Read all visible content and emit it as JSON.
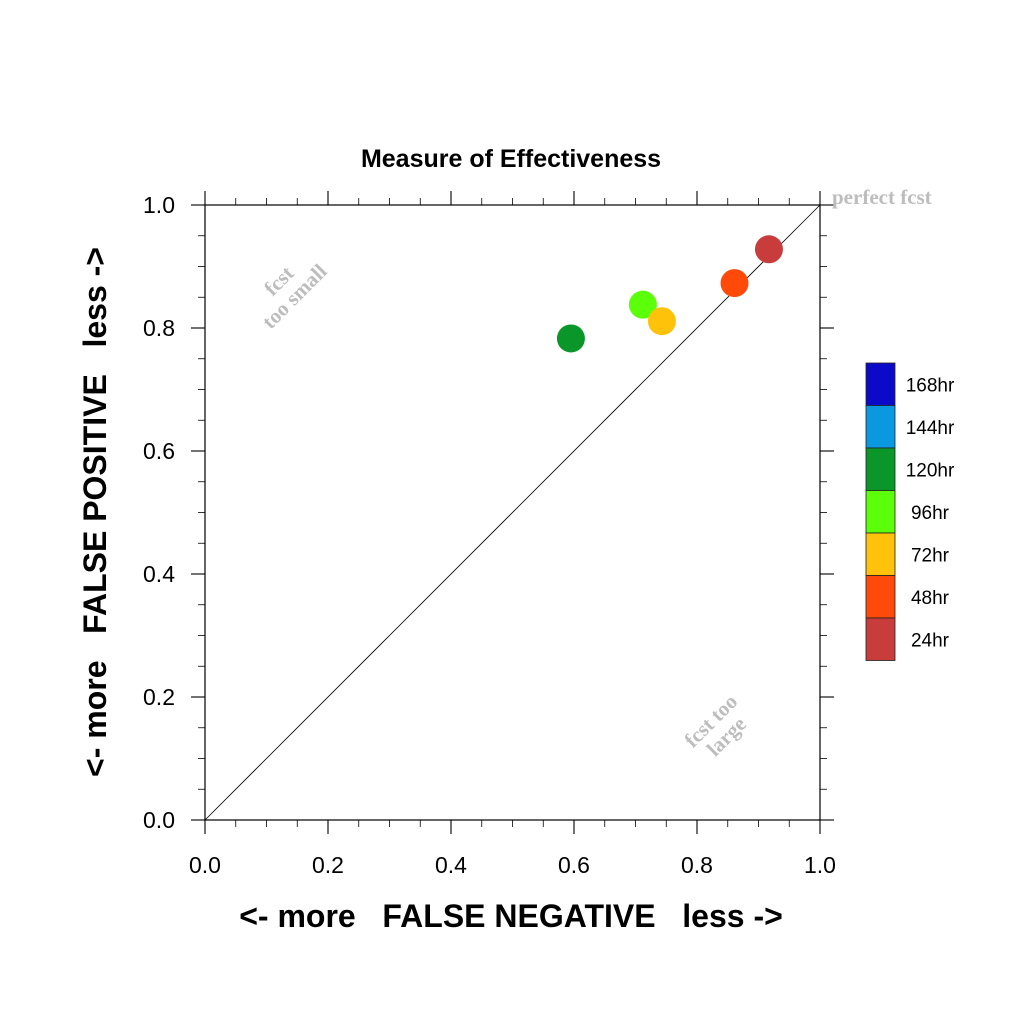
{
  "chart_data": {
    "type": "scatter",
    "title": "Measure of Effectiveness",
    "xlabel": "<- more   FALSE NEGATIVE   less ->",
    "ylabel": "<- more   FALSE POSITIVE   less ->",
    "xlim": [
      0.0,
      1.0
    ],
    "ylim": [
      0.0,
      1.0
    ],
    "xticks": [
      "0.0",
      "0.2",
      "0.4",
      "0.6",
      "0.8",
      "1.0"
    ],
    "yticks": [
      "0.0",
      "0.2",
      "0.4",
      "0.6",
      "0.8",
      "1.0"
    ],
    "grid": false,
    "diagonal_line": true,
    "annotations": {
      "perfect": "perfect fcst",
      "small_1": "fcst",
      "small_2": "too small",
      "large_1": "fcst too",
      "large_2": "large"
    },
    "legend": {
      "placement": "right",
      "entries": [
        {
          "label": "168hr",
          "color": "#0a0ac8"
        },
        {
          "label": "144hr",
          "color": "#0a98e0"
        },
        {
          "label": "120hr",
          "color": "#0a9628"
        },
        {
          "label": "96hr",
          "color": "#5cff0a"
        },
        {
          "label": "72hr",
          "color": "#ffc20a"
        },
        {
          "label": "48hr",
          "color": "#ff4a0a"
        },
        {
          "label": "24hr",
          "color": "#c83c3c"
        }
      ]
    },
    "points": [
      {
        "series": "120hr",
        "x": 0.595,
        "y": 0.783,
        "color": "#0a9628"
      },
      {
        "series": "96hr",
        "x": 0.712,
        "y": 0.838,
        "color": "#5cff0a"
      },
      {
        "series": "72hr",
        "x": 0.743,
        "y": 0.811,
        "color": "#ffc20a"
      },
      {
        "series": "48hr",
        "x": 0.861,
        "y": 0.873,
        "color": "#ff4a0a"
      },
      {
        "series": "24hr",
        "x": 0.917,
        "y": 0.928,
        "color": "#c83c3c"
      }
    ]
  }
}
